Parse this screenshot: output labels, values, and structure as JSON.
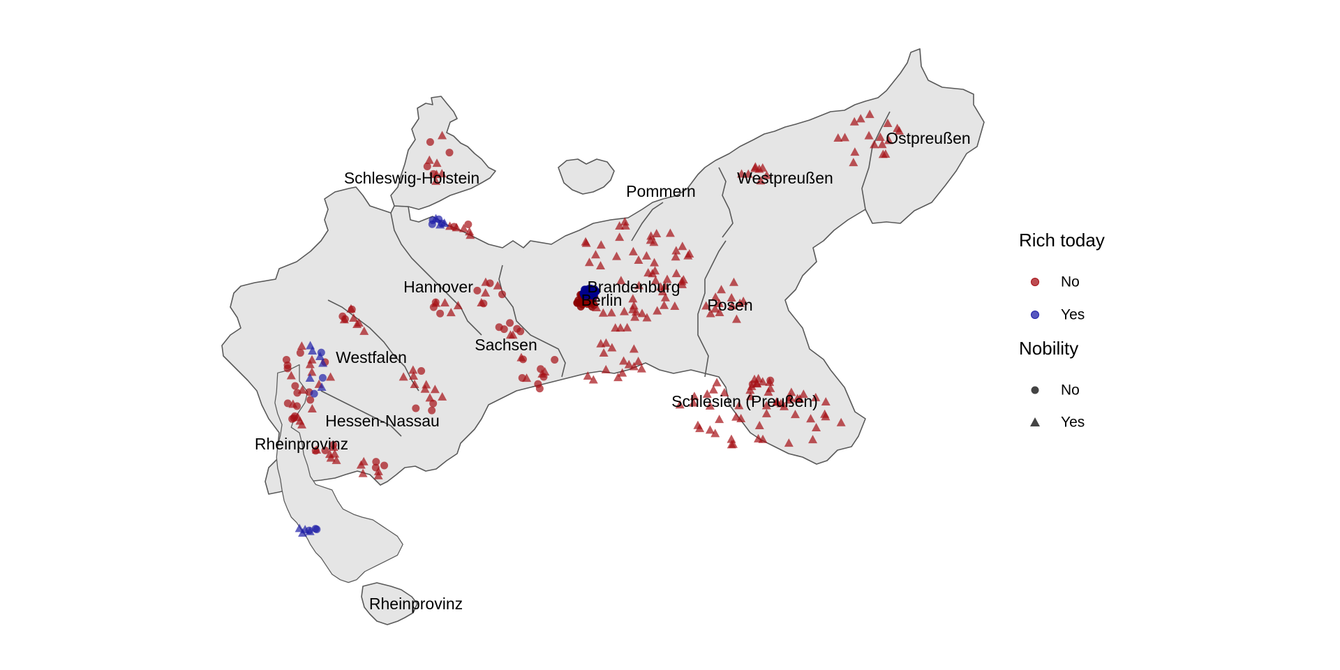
{
  "map": {
    "region_labels": [
      "Ostpreußen",
      "Westpreußen",
      "Pommern",
      "Schleswig-Holstein",
      "Hannover",
      "Brandenburg",
      "Berlin",
      "Posen",
      "Sachsen",
      "Westfalen",
      "Hessen-Nassau",
      "Rheinprovinz",
      "Schlesien (Preußen)",
      "Rheinprovinz"
    ]
  },
  "legend": {
    "color": {
      "title": "Rich today",
      "items": [
        {
          "label": "No",
          "color": "#a50f15"
        },
        {
          "label": "Yes",
          "color": "#1f1fa8"
        }
      ]
    },
    "shape": {
      "title": "Nobility",
      "items": [
        {
          "label": "No",
          "shape": "circle"
        },
        {
          "label": "Yes",
          "shape": "triangle"
        }
      ]
    }
  },
  "colors": {
    "land": "#e5e5e5",
    "border": "#595959",
    "rich_no": "#a50f15",
    "rich_yes": "#1f1fa8",
    "dense_cluster": "#8b0000",
    "dense_cluster_yes": "#00008b"
  }
}
